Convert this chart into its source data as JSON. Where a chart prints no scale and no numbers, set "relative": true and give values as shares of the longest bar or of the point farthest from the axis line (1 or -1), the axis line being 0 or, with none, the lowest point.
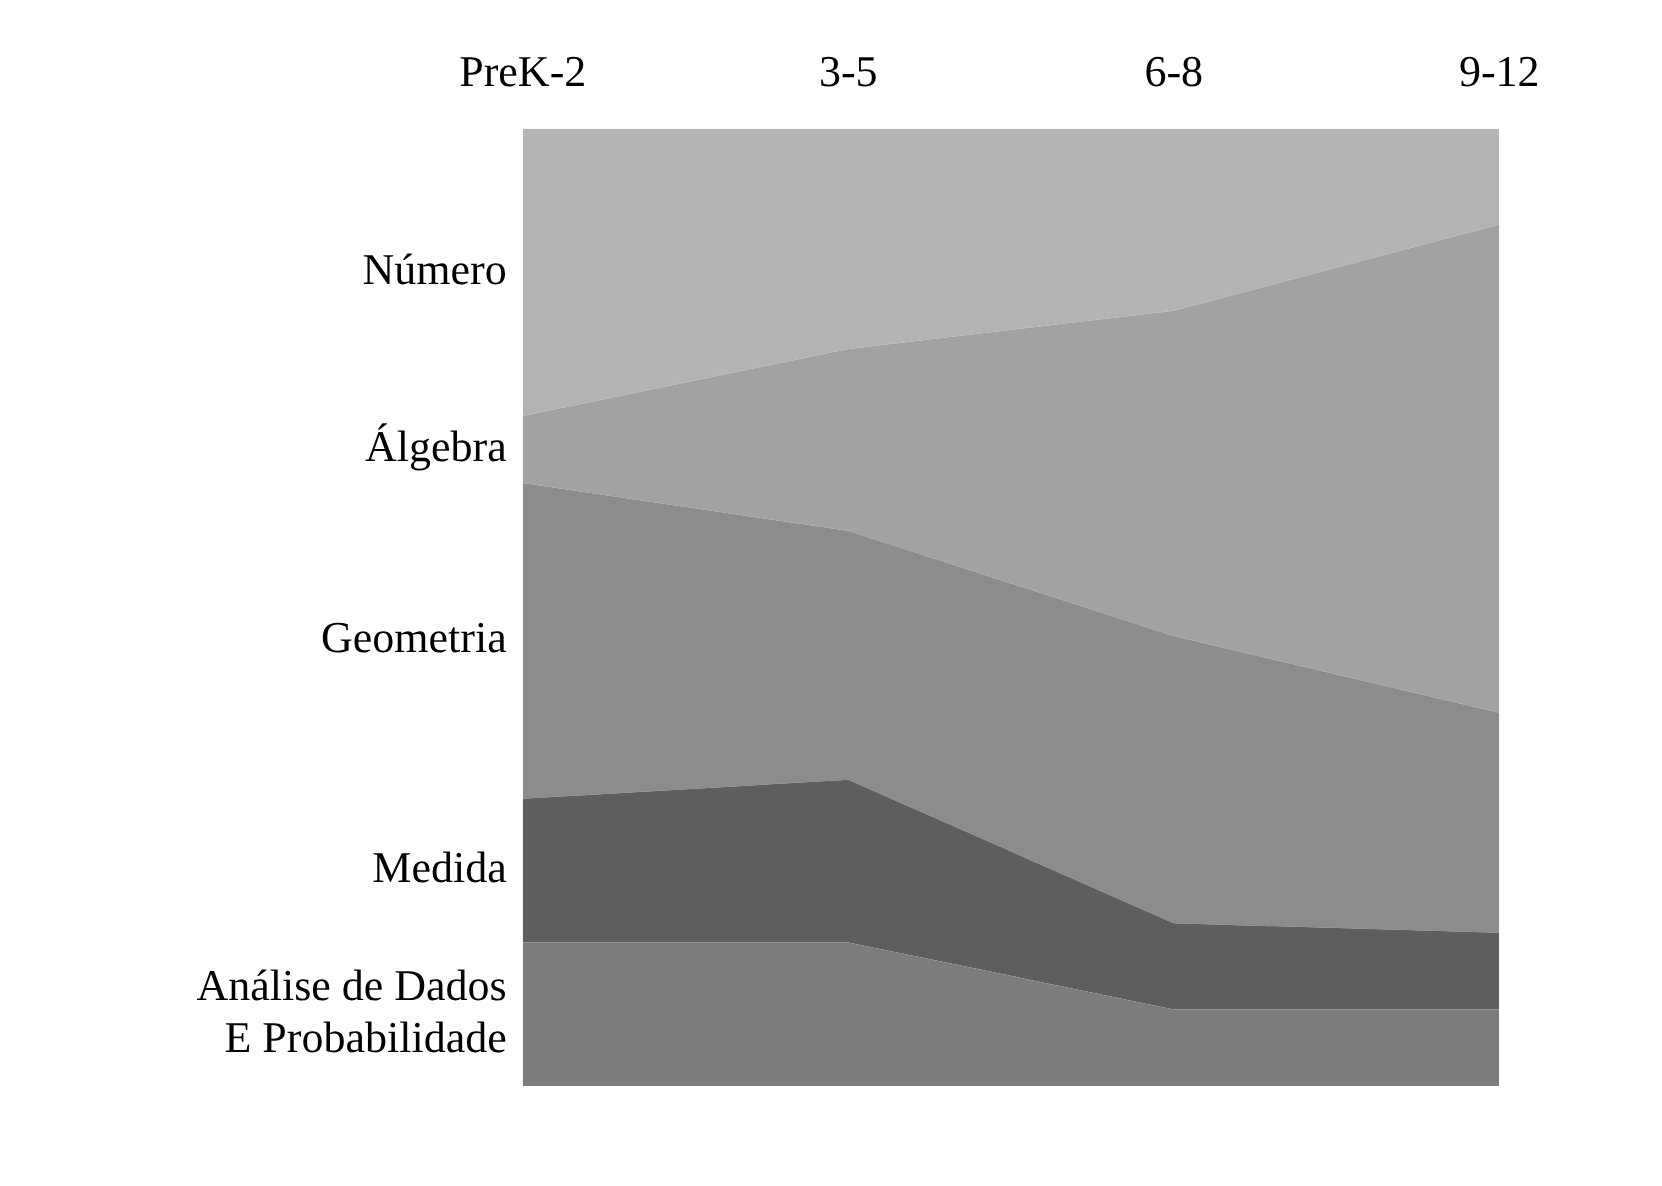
{
  "chart_data": {
    "type": "area",
    "relative": true,
    "stacked": true,
    "categories": [
      "PreK-2",
      "3-5",
      "6-8",
      "9-12"
    ],
    "series": [
      {
        "name": "Análise de Dados\nE Probabilidade",
        "color": "#7c7c7c",
        "values": [
          0.15,
          0.15,
          0.08,
          0.08
        ]
      },
      {
        "name": "Medida",
        "color": "#5e5e5e",
        "values": [
          0.15,
          0.17,
          0.09,
          0.08
        ]
      },
      {
        "name": "Geometria",
        "color": "#8c8c8c",
        "values": [
          0.33,
          0.26,
          0.3,
          0.23
        ]
      },
      {
        "name": "Álgebra",
        "color": "#a2a2a2",
        "values": [
          0.07,
          0.19,
          0.34,
          0.51
        ]
      },
      {
        "name": "Número",
        "color": "#b4b4b4",
        "values": [
          0.3,
          0.23,
          0.19,
          0.1
        ]
      }
    ],
    "grid": false,
    "legend": false,
    "tick_labels": "x"
  }
}
